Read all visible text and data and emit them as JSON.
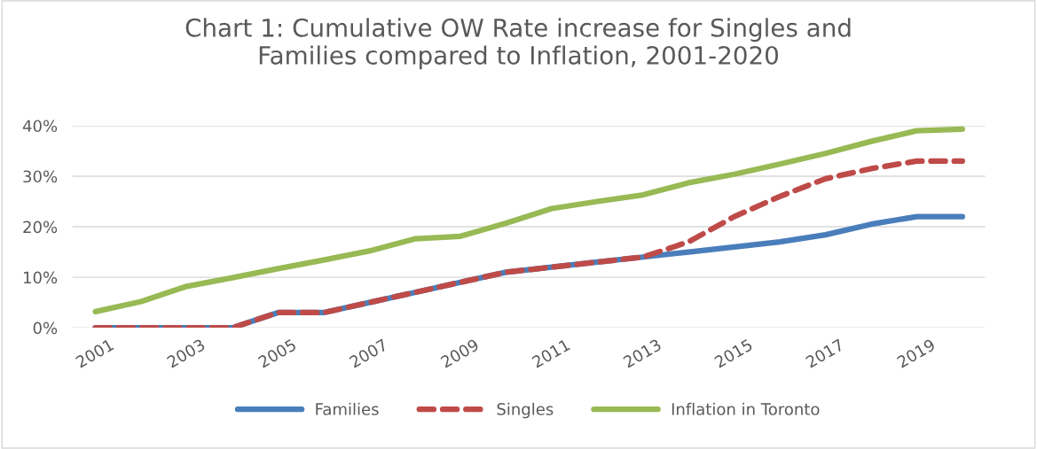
{
  "chart_data": {
    "type": "line",
    "title": "Chart 1: Cumulative OW Rate increase for Singles and\nFamilies compared to Inflation, 2001-2020",
    "categories": [
      "2001",
      null,
      "2003",
      null,
      "2005",
      null,
      "2007",
      null,
      "2009",
      null,
      "2011",
      null,
      "2013",
      null,
      "2015",
      null,
      "2017",
      null,
      "2019",
      null
    ],
    "series": [
      {
        "name": "Families",
        "color": "#4a7ebb",
        "line_style": "solid",
        "values": [
          0,
          0,
          0,
          0,
          3,
          3,
          5,
          7,
          9,
          11,
          12,
          13,
          14,
          15,
          16,
          17,
          18.4,
          20.5,
          22,
          22
        ]
      },
      {
        "name": "Singles",
        "color": "#be4b48",
        "line_style": "dashed",
        "values": [
          0,
          0,
          0,
          0,
          3,
          3,
          5,
          7,
          9,
          11,
          12,
          13,
          14,
          17,
          22,
          26,
          29.5,
          31.5,
          33,
          33
        ]
      },
      {
        "name": "Inflation in Toronto",
        "color": "#98b954",
        "line_style": "solid",
        "values": [
          3.2,
          5.2,
          8.2,
          9.9,
          11.7,
          13.4,
          15.2,
          17.6,
          18.1,
          20.7,
          23.6,
          25,
          26.3,
          28.7,
          30.4,
          32.4,
          34.5,
          36.9,
          39,
          39.3
        ]
      }
    ],
    "ylim": [
      0,
      40
    ],
    "yticks": [
      {
        "value": 0,
        "label": "0%"
      },
      {
        "value": 10,
        "label": "10%"
      },
      {
        "value": 20,
        "label": "20%"
      },
      {
        "value": 30,
        "label": "30%"
      },
      {
        "value": 40,
        "label": "40%"
      }
    ],
    "grid": "y",
    "legend": "bottom",
    "marker": "none"
  }
}
